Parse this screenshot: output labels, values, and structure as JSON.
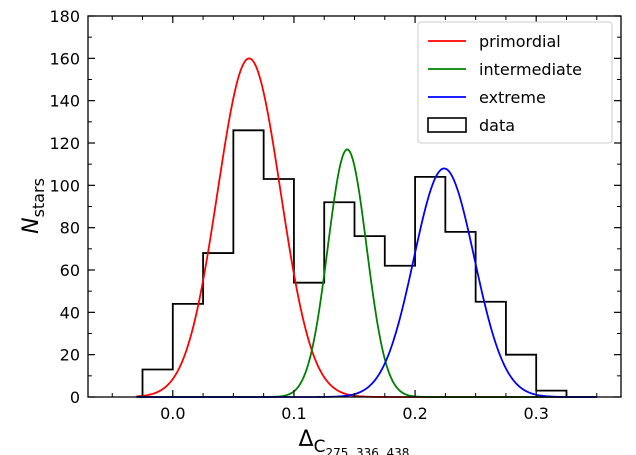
{
  "chart_data": {
    "type": "line",
    "xlabel": {
      "base": "Δ",
      "sub": "C",
      "subsub": "275, 336, 438"
    },
    "ylabel": {
      "base": "N",
      "sub": "stars"
    },
    "xlim": [
      -0.07,
      0.37
    ],
    "ylim": [
      0,
      180
    ],
    "xticks": [
      0.0,
      0.1,
      0.2,
      0.3
    ],
    "xtick_labels": [
      "0.0",
      "0.1",
      "0.2",
      "0.3"
    ],
    "yticks": [
      0,
      20,
      40,
      60,
      80,
      100,
      120,
      140,
      160,
      180
    ],
    "ytick_labels": [
      "0",
      "20",
      "40",
      "60",
      "80",
      "100",
      "120",
      "140",
      "160",
      "180"
    ],
    "grid": false,
    "legend_position": "top-right",
    "series": [
      {
        "name": "primordial",
        "kind": "gaussian",
        "amplitude": 160,
        "mean": 0.063,
        "sigma": 0.026,
        "color": "#ff0000"
      },
      {
        "name": "intermediate",
        "kind": "gaussian",
        "amplitude": 117,
        "mean": 0.144,
        "sigma": 0.016,
        "color": "#008000"
      },
      {
        "name": "extreme",
        "kind": "gaussian",
        "amplitude": 108,
        "mean": 0.224,
        "sigma": 0.025,
        "color": "#0000ff"
      }
    ],
    "histogram": {
      "name": "data",
      "color": "#000000",
      "bin_edges": [
        -0.025,
        0.0,
        0.025,
        0.05,
        0.075,
        0.1,
        0.125,
        0.15,
        0.175,
        0.2,
        0.225,
        0.25,
        0.275,
        0.3,
        0.325
      ],
      "counts": [
        13,
        44,
        68,
        126,
        103,
        54,
        92,
        76,
        62,
        104,
        78,
        45,
        20,
        3
      ]
    }
  }
}
